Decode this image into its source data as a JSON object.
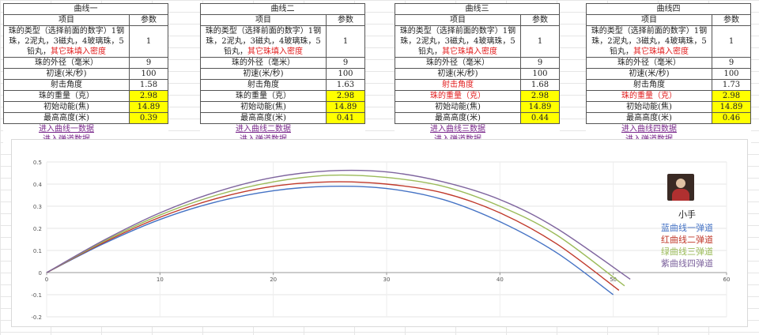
{
  "tables": [
    {
      "title": "曲线一",
      "header": {
        "item": "项目",
        "param": "参数"
      },
      "type_label_a": "珠的类型（选择前面的数字）1钢珠，2泥丸，3磁丸，4玻璃珠，5铅丸，",
      "type_label_b": "其它珠填入密度",
      "type_value": "1",
      "diameter_label": "珠的外径（毫米）",
      "diameter": "9",
      "speed_label": "初速(米/秒)",
      "speed": "100",
      "angle_label": "射击角度",
      "angle": "1.58",
      "angle_red": false,
      "weight_label": "珠的重量（克）",
      "weight": "2.98",
      "weight_red": false,
      "energy_label": "初始动能(焦)",
      "energy": "14.89",
      "height_label": "最高高度(米)",
      "height": "0.39",
      "link1": "进入曲线一数据",
      "link2": "进入弹道数据"
    },
    {
      "title": "曲线二",
      "header": {
        "item": "项目",
        "param": "参数"
      },
      "type_label_a": "珠的类型（选择前面的数字）1钢珠，2泥丸，3磁丸，4玻璃珠，5铅丸，",
      "type_label_b": "其它珠填入密度",
      "type_value": "1",
      "diameter_label": "珠的外径（毫米）",
      "diameter": "9",
      "speed_label": "初速(米/秒)",
      "speed": "100",
      "angle_label": "射击角度",
      "angle": "1.63",
      "angle_red": false,
      "weight_label": "珠的重量（克）",
      "weight": "2.98",
      "weight_red": false,
      "energy_label": "初始动能(焦)",
      "energy": "14.89",
      "height_label": "最高高度(米)",
      "height": "0.41",
      "link1": "进入曲线二数据",
      "link2": "进入弹道数据"
    },
    {
      "title": "曲线三",
      "header": {
        "item": "项目",
        "param": "参数"
      },
      "type_label_a": "珠的类型（选择前面的数字）1钢珠，2泥丸，3磁丸，4玻璃珠，5铅丸，",
      "type_label_b": "其它珠填入密度",
      "type_value": "1",
      "diameter_label": "珠的外径（毫米）",
      "diameter": "9",
      "speed_label": "初速(米/秒)",
      "speed": "100",
      "angle_label": "射击角度",
      "angle": "1.68",
      "angle_red": true,
      "weight_label": "珠的重量（克）",
      "weight": "2.98",
      "weight_red": true,
      "energy_label": "初始动能(焦)",
      "energy": "14.89",
      "height_label": "最高高度(米)",
      "height": "0.44",
      "link1": "进入曲线三数据",
      "link2": "进入弹道数据"
    },
    {
      "title": "曲线四",
      "header": {
        "item": "项目",
        "param": "参数"
      },
      "type_label_a": "珠的类型（选择前面的数字）1钢珠，2泥丸，3磁丸，4玻璃珠，5铅丸，",
      "type_label_b": "其它珠填入密度",
      "type_value": "1",
      "diameter_label": "珠的外径（毫米）",
      "diameter": "9",
      "speed_label": "初速(米/秒)",
      "speed": "100",
      "angle_label": "射击角度",
      "angle": "1.73",
      "angle_red": false,
      "weight_label": "珠的重量（克）",
      "weight": "2.98",
      "weight_red": true,
      "energy_label": "初始动能(焦)",
      "energy": "14.89",
      "height_label": "最高高度(米)",
      "height": "0.46",
      "link1": "进入曲线四数据",
      "link2": "进入弹道数据"
    }
  ],
  "legend": {
    "title": "小手",
    "items": [
      {
        "label": "蓝曲线一弹道",
        "color": "#4472c4"
      },
      {
        "label": "红曲线二弹道",
        "color": "#c0392b"
      },
      {
        "label": "绿曲线三弹道",
        "color": "#9bbb59"
      },
      {
        "label": "紫曲线四弹道",
        "color": "#7e649e"
      }
    ]
  },
  "colors": {
    "highlight": "#ffff00",
    "red_text": "#e21b1b",
    "link": "#7a2a8c"
  },
  "chart_data": {
    "type": "line",
    "title": "",
    "xlabel": "",
    "ylabel": "",
    "xlim": [
      0,
      60
    ],
    "ylim": [
      -0.2,
      0.5
    ],
    "xticks": [
      0,
      10,
      20,
      30,
      40,
      50,
      60
    ],
    "yticks": [
      0.5,
      0.4,
      0.3,
      0.2,
      0.1,
      0,
      -0.1,
      -0.2
    ],
    "grid": true,
    "series": [
      {
        "name": "蓝曲线一弹道",
        "color": "#4472c4",
        "x": [
          0,
          5,
          10,
          15,
          20,
          25,
          30,
          35,
          40,
          45,
          50
        ],
        "y": [
          0,
          0.13,
          0.24,
          0.32,
          0.37,
          0.39,
          0.38,
          0.33,
          0.23,
          0.09,
          -0.1
        ]
      },
      {
        "name": "红曲线二弹道",
        "color": "#c0392b",
        "x": [
          0,
          5,
          10,
          15,
          20,
          25,
          30,
          35,
          40,
          45,
          50.5
        ],
        "y": [
          0,
          0.135,
          0.25,
          0.335,
          0.39,
          0.41,
          0.4,
          0.36,
          0.27,
          0.13,
          -0.08
        ]
      },
      {
        "name": "绿曲线三弹道",
        "color": "#9bbb59",
        "x": [
          0,
          5,
          10,
          15,
          20,
          25,
          30,
          35,
          40,
          45,
          51
        ],
        "y": [
          0,
          0.14,
          0.26,
          0.35,
          0.41,
          0.44,
          0.43,
          0.39,
          0.3,
          0.17,
          -0.06
        ]
      },
      {
        "name": "紫曲线四弹道",
        "color": "#7e649e",
        "x": [
          0,
          5,
          10,
          15,
          20,
          25,
          30,
          35,
          40,
          45,
          51.5
        ],
        "y": [
          0,
          0.145,
          0.27,
          0.365,
          0.43,
          0.46,
          0.455,
          0.41,
          0.33,
          0.2,
          -0.03
        ]
      }
    ]
  }
}
